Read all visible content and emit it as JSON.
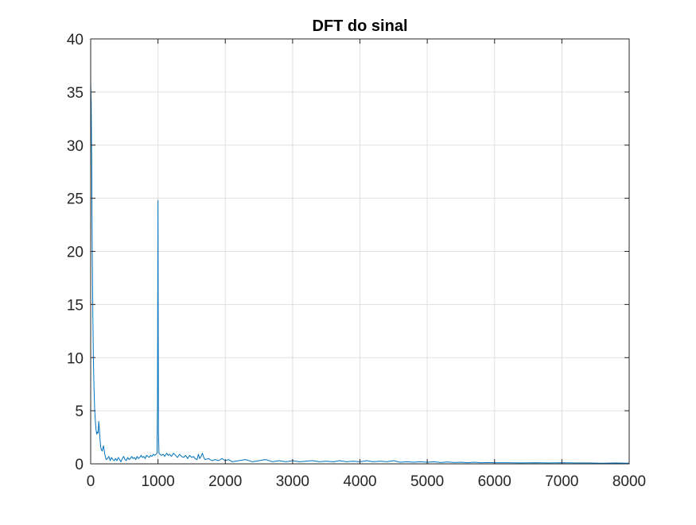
{
  "chart_data": {
    "type": "line",
    "title": "DFT do sinal",
    "xlabel": "",
    "ylabel": "",
    "xlim": [
      0,
      8000
    ],
    "ylim": [
      0,
      40
    ],
    "xticks": [
      0,
      1000,
      2000,
      3000,
      4000,
      5000,
      6000,
      7000,
      8000
    ],
    "yticks": [
      0,
      5,
      10,
      15,
      20,
      25,
      30,
      35,
      40
    ],
    "grid": true,
    "legend": "none",
    "colors": {
      "line": "#0072bd",
      "grid": "#dfdfdf",
      "axis": "#262626"
    },
    "series": [
      {
        "x": [
          0,
          8,
          16,
          24,
          32,
          40,
          50,
          60,
          70,
          80,
          90,
          100,
          110,
          120,
          130,
          140,
          150,
          170,
          190,
          210,
          230,
          250,
          270,
          290,
          310,
          330,
          350,
          370,
          390,
          410,
          430,
          450,
          470,
          490,
          510,
          530,
          550,
          570,
          590,
          610,
          630,
          650,
          670,
          690,
          710,
          730,
          750,
          770,
          790,
          810,
          830,
          850,
          870,
          890,
          910,
          930,
          950,
          970,
          985,
          993,
          997,
          1000,
          1003,
          1007,
          1015,
          1030,
          1050,
          1080,
          1100,
          1130,
          1150,
          1170,
          1200,
          1230,
          1260,
          1290,
          1320,
          1350,
          1380,
          1410,
          1440,
          1470,
          1500,
          1530,
          1550,
          1580,
          1600,
          1620,
          1640,
          1660,
          1680,
          1700,
          1750,
          1800,
          1850,
          1900,
          1950,
          2000,
          2050,
          2100,
          2200,
          2300,
          2400,
          2500,
          2600,
          2700,
          2800,
          2900,
          3000,
          3100,
          3200,
          3300,
          3400,
          3500,
          3600,
          3700,
          3800,
          3900,
          4000,
          4100,
          4200,
          4300,
          4400,
          4500,
          4600,
          4700,
          4800,
          4900,
          5000,
          5100,
          5200,
          5300,
          5400,
          5500,
          5600,
          5700,
          5800,
          5900,
          6000,
          6200,
          6400,
          6600,
          6800,
          7000,
          7200,
          7400,
          7600,
          7800,
          8000
        ],
        "y": [
          36,
          34,
          28,
          20,
          14,
          10,
          7,
          5,
          4,
          3.2,
          2.8,
          3,
          2.9,
          4,
          3.2,
          2.2,
          1.5,
          1.2,
          1.7,
          0.9,
          0.4,
          0.5,
          0.7,
          0.3,
          0.6,
          0.4,
          0.3,
          0.5,
          0.3,
          0.6,
          0.4,
          0.2,
          0.5,
          0.7,
          0.4,
          0.3,
          0.6,
          0.4,
          0.5,
          0.7,
          0.5,
          0.6,
          0.4,
          0.7,
          0.5,
          0.6,
          0.8,
          0.6,
          0.7,
          0.5,
          0.8,
          0.7,
          0.6,
          0.8,
          0.7,
          0.9,
          0.8,
          0.9,
          1,
          6,
          18,
          24.8,
          15,
          3,
          1,
          0.9,
          0.8,
          0.9,
          0.7,
          1,
          0.8,
          0.9,
          0.7,
          1,
          0.8,
          0.6,
          0.9,
          0.7,
          0.6,
          0.8,
          0.5,
          0.8,
          0.6,
          0.7,
          0.5,
          0.4,
          0.9,
          0.5,
          0.7,
          1,
          0.6,
          0.4,
          0.5,
          0.3,
          0.4,
          0.3,
          0.5,
          0.3,
          0.4,
          0.2,
          0.3,
          0.4,
          0.2,
          0.3,
          0.4,
          0.2,
          0.3,
          0.2,
          0.3,
          0.2,
          0.25,
          0.3,
          0.2,
          0.25,
          0.2,
          0.3,
          0.2,
          0.25,
          0.2,
          0.3,
          0.2,
          0.25,
          0.2,
          0.3,
          0.15,
          0.2,
          0.15,
          0.2,
          0.15,
          0.2,
          0.12,
          0.18,
          0.12,
          0.15,
          0.1,
          0.15,
          0.1,
          0.12,
          0.1,
          0.1,
          0.08,
          0.1,
          0.08,
          0.1,
          0.08,
          0.08,
          0.06,
          0.08,
          0.06
        ]
      }
    ]
  }
}
